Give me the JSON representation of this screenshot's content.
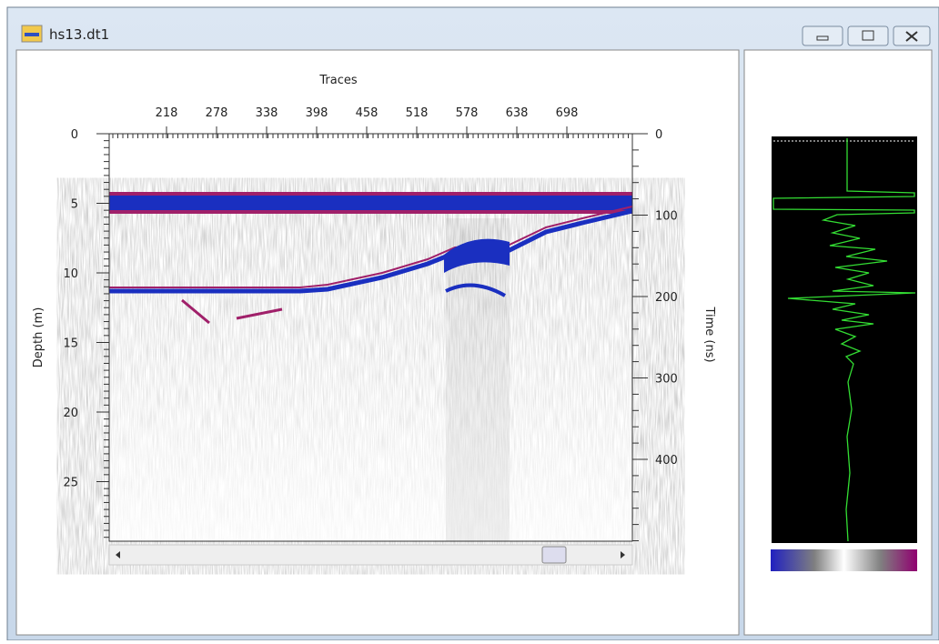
{
  "window": {
    "title": "hs13.dt1"
  },
  "plot": {
    "x_label": "Traces",
    "x_ticks": [
      218,
      278,
      338,
      398,
      458,
      518,
      578,
      638,
      698
    ],
    "left_label": "Depth (m)",
    "left_ticks": [
      0,
      5,
      10,
      15,
      20,
      25
    ],
    "right_label": "Time (ns)",
    "right_ticks": [
      0,
      100,
      200,
      300,
      400
    ]
  }
}
